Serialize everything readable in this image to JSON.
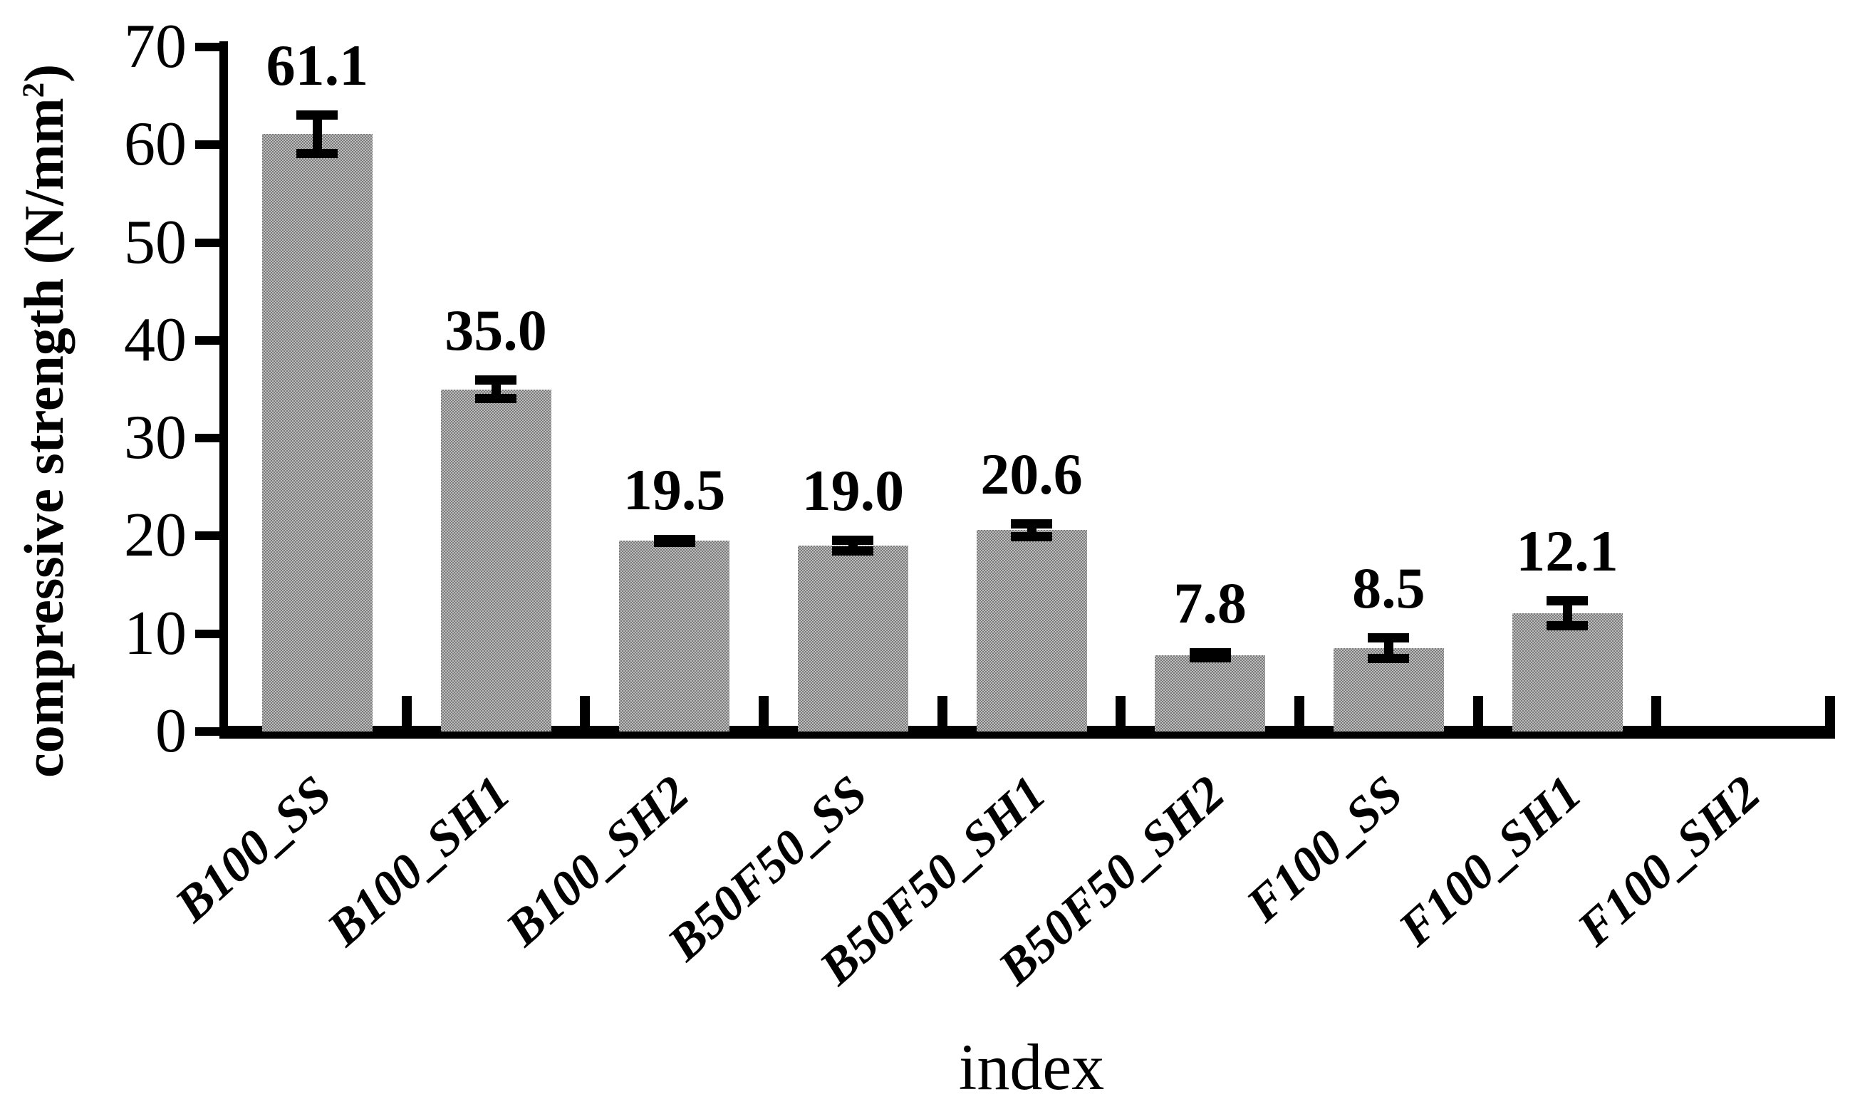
{
  "chart_data": {
    "type": "bar",
    "title": "",
    "xlabel": "index",
    "ylabel": "compressive strength (N/mm2)",
    "ylabel_parts": {
      "prefix": "compressive strength (N/mm",
      "sup": "2",
      "suffix": ")"
    },
    "categories": [
      "B100_SS",
      "B100_SH1",
      "B100_SH2",
      "B50F50_SS",
      "B50F50_SH1",
      "B50F50_SH2",
      "F100_SS",
      "F100_SH1",
      "F100_SH2"
    ],
    "values": [
      61.1,
      35.0,
      19.5,
      19.0,
      20.6,
      7.8,
      8.5,
      12.1,
      0
    ],
    "value_labels": [
      "61.1",
      "35.0",
      "19.5",
      "19.0",
      "20.6",
      "7.8",
      "8.5",
      "12.1",
      ""
    ],
    "errors": [
      2.0,
      1.0,
      0.2,
      0.6,
      0.7,
      0.3,
      1.1,
      1.3,
      0
    ],
    "yticks": [
      0,
      10,
      20,
      30,
      40,
      50,
      60,
      70
    ],
    "ylim": [
      0,
      70
    ],
    "grid": false,
    "legend": false,
    "bar_pattern_dark": "#7a7a7a",
    "bar_pattern_light": "#bdbdbd",
    "axis_color": "#000000",
    "text_color": "#000000"
  }
}
